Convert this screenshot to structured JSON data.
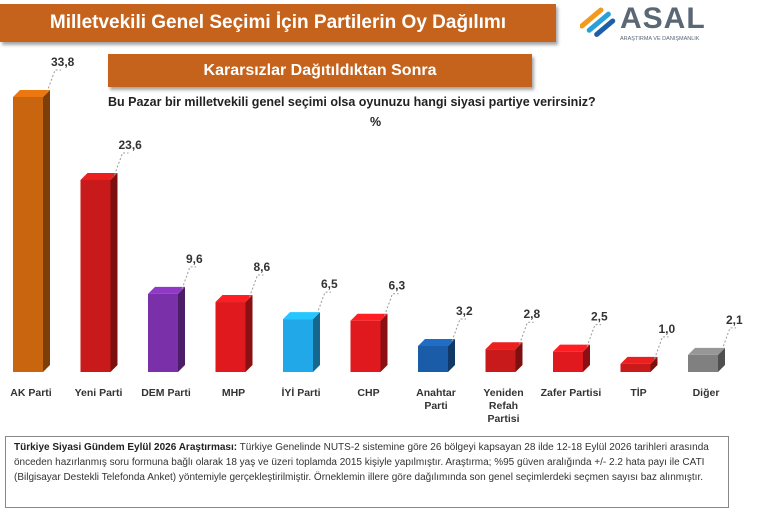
{
  "header": {
    "title": "Milletvekili Genel Seçimi İçin Partilerin Oy Dağılımı",
    "subtitle": "Kararsızlar Dağıtıldıktan Sonra"
  },
  "logo": {
    "name": "ASAL",
    "tagline": "ARAŞTIRMA VE DANIŞMANLIK"
  },
  "question": "Bu Pazar bir milletvekili genel seçimi olsa oyunuzu hangi siyasi partiye verirsiniz?",
  "unit": "%",
  "chart_data": {
    "type": "bar",
    "title": "Milletvekili Genel Seçimi İçin Partilerin Oy Dağılımı",
    "subtitle": "Kararsızlar Dağıtıldıktan Sonra",
    "ylabel": "%",
    "grid": false,
    "legend": "none",
    "categories": [
      {
        "label": "AK Parti",
        "lines": [
          "AK Parti"
        ]
      },
      {
        "label": "Yeni Parti",
        "lines": [
          "Yeni Parti"
        ]
      },
      {
        "label": "DEM Parti",
        "lines": [
          "DEM Parti"
        ]
      },
      {
        "label": "MHP",
        "lines": [
          "MHP"
        ]
      },
      {
        "label": "İYİ Parti",
        "lines": [
          "İYİ Parti"
        ]
      },
      {
        "label": "CHP",
        "lines": [
          "CHP"
        ]
      },
      {
        "label": "Anahtar Parti",
        "lines": [
          "Anahtar",
          "Parti"
        ]
      },
      {
        "label": "Yeniden Refah Partisi",
        "lines": [
          "Yeniden",
          "Refah",
          "Partisi"
        ]
      },
      {
        "label": "Zafer Partisi",
        "lines": [
          "Zafer Partisi"
        ]
      },
      {
        "label": "TİP",
        "lines": [
          "TİP"
        ]
      },
      {
        "label": "Diğer",
        "lines": [
          "Diğer"
        ]
      }
    ],
    "values": [
      33.8,
      23.6,
      9.6,
      8.6,
      6.5,
      6.3,
      3.2,
      2.8,
      2.5,
      1.0,
      2.1
    ],
    "value_labels": [
      "33,8",
      "23,6",
      "9,6",
      "8,6",
      "6,5",
      "6,3",
      "3,2",
      "2,8",
      "2,5",
      "1,0",
      "2,1"
    ],
    "colors": [
      "#c8650e",
      "#c81a1a",
      "#7a30a8",
      "#e0191e",
      "#20a8e8",
      "#e0191e",
      "#1a5ca8",
      "#c81a1a",
      "#e0191e",
      "#c81a1a",
      "#808080"
    ],
    "ylim": [
      0,
      35
    ]
  },
  "footnote": {
    "lead": "Türkiye Siyasi Gündem Eylül 2026 Araştırması:",
    "text": "Türkiye Genelinde NUTS-2 sistemine göre 26 bölgeyi kapsayan 28 ilde 12-18 Eylül 2026 tarihleri arasında önceden hazırlanmış soru formuna bağlı olarak 18 yaş ve üzeri toplamda 2015 kişiyle yapılmıştır. Araştırma; %95 güven aralığında +/- 2.2 hata payı ile CATI (Bilgisayar Destekli Telefonda Anket) yöntemiyle gerçekleştirilmiştir. Örneklemin illere göre dağılımında son genel seçimlerdeki seçmen sayısı baz alınmıştır."
  }
}
